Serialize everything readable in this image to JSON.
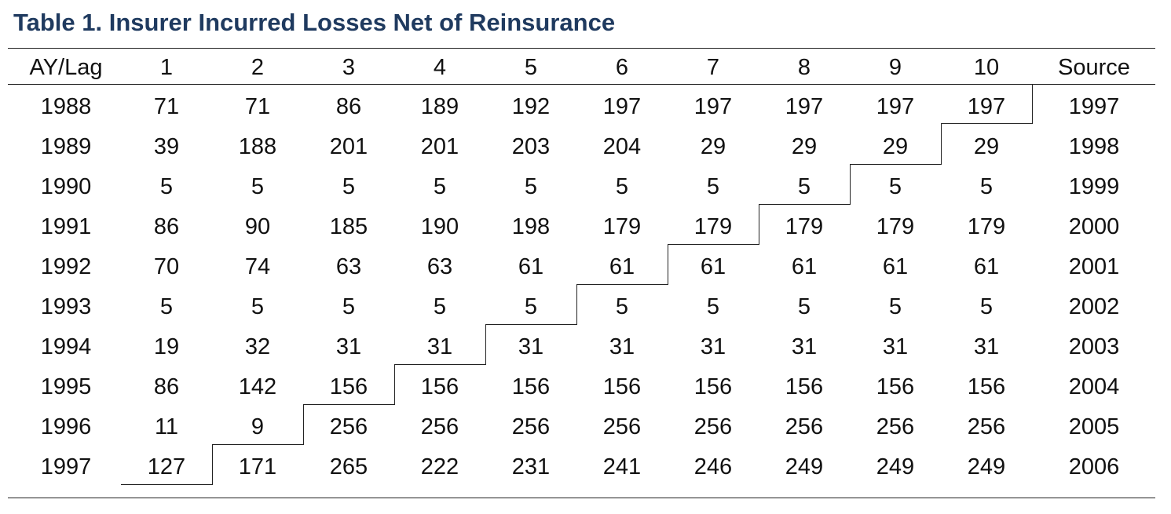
{
  "title": "Table 1. Insurer Incurred Losses Net of Reinsurance",
  "table": {
    "headers": [
      "AY/Lag",
      "1",
      "2",
      "3",
      "4",
      "5",
      "6",
      "7",
      "8",
      "9",
      "10",
      "Source"
    ],
    "rows": [
      [
        "1988",
        "71",
        "71",
        "86",
        "189",
        "192",
        "197",
        "197",
        "197",
        "197",
        "197",
        "1997"
      ],
      [
        "1989",
        "39",
        "188",
        "201",
        "201",
        "203",
        "204",
        "29",
        "29",
        "29",
        "29",
        "1998"
      ],
      [
        "1990",
        "5",
        "5",
        "5",
        "5",
        "5",
        "5",
        "5",
        "5",
        "5",
        "5",
        "1999"
      ],
      [
        "1991",
        "86",
        "90",
        "185",
        "190",
        "198",
        "179",
        "179",
        "179",
        "179",
        "179",
        "2000"
      ],
      [
        "1992",
        "70",
        "74",
        "63",
        "63",
        "61",
        "61",
        "61",
        "61",
        "61",
        "61",
        "2001"
      ],
      [
        "1993",
        "5",
        "5",
        "5",
        "5",
        "5",
        "5",
        "5",
        "5",
        "5",
        "5",
        "2002"
      ],
      [
        "1994",
        "19",
        "32",
        "31",
        "31",
        "31",
        "31",
        "31",
        "31",
        "31",
        "31",
        "2003"
      ],
      [
        "1995",
        "86",
        "142",
        "156",
        "156",
        "156",
        "156",
        "156",
        "156",
        "156",
        "156",
        "2004"
      ],
      [
        "1996",
        "11",
        "9",
        "256",
        "256",
        "256",
        "256",
        "256",
        "256",
        "256",
        "256",
        "2005"
      ],
      [
        "1997",
        "127",
        "171",
        "265",
        "222",
        "231",
        "241",
        "246",
        "249",
        "249",
        "249",
        "2006"
      ]
    ]
  }
}
